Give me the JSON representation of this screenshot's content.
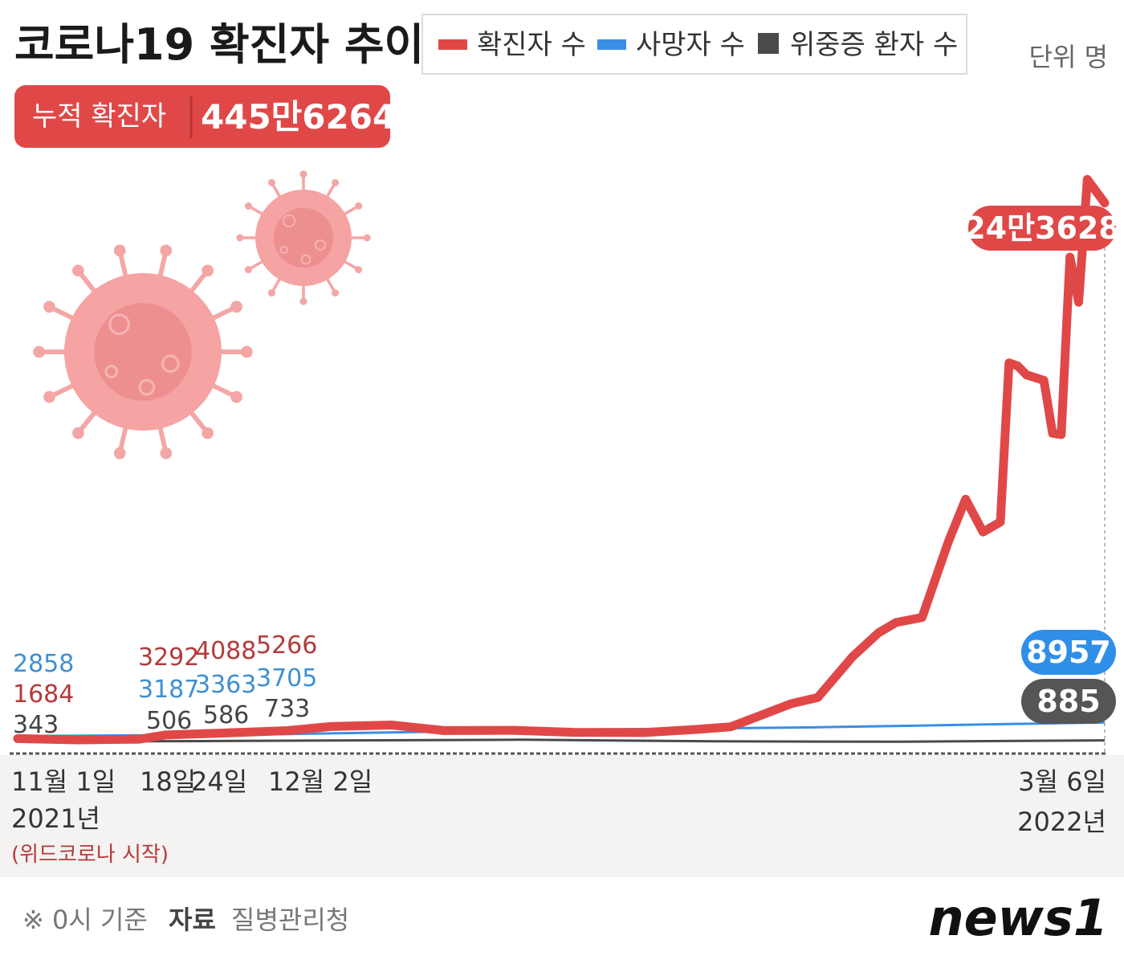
{
  "title": "코로나19 확진자 추이",
  "unit": "단위 명",
  "badge": {
    "label": "누적 확진자",
    "value": "445만6264"
  },
  "legend": [
    {
      "name": "확진자 수",
      "color": "#e04848"
    },
    {
      "name": "사망자 수",
      "color": "#3a8ee6"
    },
    {
      "name": "위중증 환자 수",
      "color": "#4a4a4a"
    }
  ],
  "axis": {
    "start": {
      "date": "11월 1일",
      "year": "2021년",
      "note": "(위드코로나 시작)"
    },
    "ticks": [
      "18일",
      "24일",
      "12월 2일"
    ],
    "end": {
      "date": "3월 6일",
      "year": "2022년"
    }
  },
  "annotations": [
    {
      "date": "11월 1일",
      "confirmed": "1684",
      "deaths": "2858",
      "critical": "343"
    },
    {
      "date": "18일",
      "confirmed": "3292",
      "deaths": "3187",
      "critical": "506"
    },
    {
      "date": "24일",
      "confirmed": "4088",
      "deaths": "3363",
      "critical": "586"
    },
    {
      "date": "12월 2일",
      "confirmed": "5266",
      "deaths": "3705",
      "critical": "733"
    }
  ],
  "end_values": {
    "confirmed": "24만3628",
    "deaths": "8957",
    "critical": "885"
  },
  "footer": {
    "note": "※ 0시 기준",
    "source_label": "자료",
    "source": "질병관리청",
    "logo": "news1"
  },
  "chart_data": {
    "type": "line",
    "title": "코로나19 확진자 추이",
    "unit": "명",
    "x_range": [
      "2021-11-01",
      "2022-03-06"
    ],
    "y_range": [
      0,
      270000
    ],
    "grid": false,
    "legend_position": "top",
    "series": [
      {
        "name": "확진자 수",
        "color": "#e04848",
        "points": [
          [
            "2021-11-01",
            1684
          ],
          [
            "2021-11-08",
            1100
          ],
          [
            "2021-11-15",
            1400
          ],
          [
            "2021-11-18",
            3292
          ],
          [
            "2021-11-24",
            4088
          ],
          [
            "2021-12-02",
            5266
          ],
          [
            "2021-12-07",
            7100
          ],
          [
            "2021-12-14",
            7800
          ],
          [
            "2021-12-20",
            5300
          ],
          [
            "2021-12-28",
            5400
          ],
          [
            "2022-01-04",
            4500
          ],
          [
            "2022-01-12",
            4400
          ],
          [
            "2022-01-18",
            5800
          ],
          [
            "2022-01-22",
            7000
          ],
          [
            "2022-01-26",
            13000
          ],
          [
            "2022-01-29",
            17500
          ],
          [
            "2022-02-01",
            20200
          ],
          [
            "2022-02-05",
            38700
          ],
          [
            "2022-02-08",
            49500
          ],
          [
            "2022-02-10",
            54100
          ],
          [
            "2022-02-13",
            56400
          ],
          [
            "2022-02-16",
            90400
          ],
          [
            "2022-02-18",
            109800
          ],
          [
            "2022-02-20",
            95000
          ],
          [
            "2022-02-22",
            99500
          ],
          [
            "2022-02-23",
            171400
          ],
          [
            "2022-02-24",
            170000
          ],
          [
            "2022-02-25",
            166000
          ],
          [
            "2022-02-27",
            163500
          ],
          [
            "2022-02-28",
            139600
          ],
          [
            "2022-03-01",
            139000
          ],
          [
            "2022-03-02",
            219200
          ],
          [
            "2022-03-03",
            198800
          ],
          [
            "2022-03-04",
            254300
          ],
          [
            "2022-03-06",
            243628
          ]
        ]
      },
      {
        "name": "사망자 수",
        "color": "#3a8ee6",
        "points": [
          [
            "2021-11-01",
            2858
          ],
          [
            "2021-11-18",
            3187
          ],
          [
            "2021-11-24",
            3363
          ],
          [
            "2021-12-02",
            3705
          ],
          [
            "2022-01-01",
            5600
          ],
          [
            "2022-02-01",
            6800
          ],
          [
            "2022-03-06",
            8957
          ]
        ]
      },
      {
        "name": "위중증 환자 수",
        "color": "#4a4a4a",
        "points": [
          [
            "2021-11-01",
            343
          ],
          [
            "2021-11-18",
            506
          ],
          [
            "2021-11-24",
            586
          ],
          [
            "2021-12-02",
            733
          ],
          [
            "2021-12-29",
            1150
          ],
          [
            "2022-01-20",
            450
          ],
          [
            "2022-02-10",
            270
          ],
          [
            "2022-03-06",
            885
          ]
        ]
      }
    ]
  }
}
